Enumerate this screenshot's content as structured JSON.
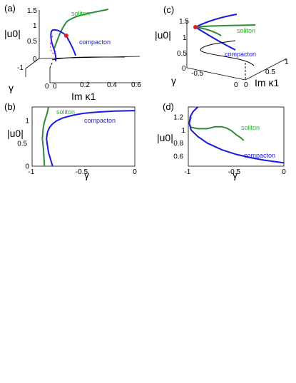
{
  "colors": {
    "soliton": "#2e8b3a",
    "compacton": "#1a1adc",
    "black": "#000000",
    "magenta": "#c020c0",
    "marker": "#e02020",
    "soliton_label": "#22bb22"
  },
  "panels": {
    "a": "(a)",
    "b": "(b)",
    "c": "(c)",
    "d": "(d)"
  },
  "chart_data": [
    {
      "panel": "a",
      "type": "line",
      "projection": "3d",
      "xlabel": "Im κ1",
      "ylabel": "γ",
      "zlabel": "|u0|",
      "x_ticks": [
        "0",
        "0.2",
        "0.4",
        "0.6"
      ],
      "y_ticks": [
        "0",
        "-1"
      ],
      "z_ticks": [
        "0",
        "0.5",
        "1",
        "1.5"
      ],
      "series": [
        {
          "name": "soliton",
          "points": [
            [
              0.0,
              -0.5,
              0.85
            ],
            [
              0.05,
              -0.5,
              1.0
            ],
            [
              0.15,
              -0.5,
              1.25
            ],
            [
              0.3,
              -0.5,
              1.45
            ],
            [
              0.45,
              -0.5,
              1.55
            ]
          ]
        },
        {
          "name": "compacton",
          "points": [
            [
              0.05,
              -0.5,
              0.9
            ],
            [
              0.12,
              -0.5,
              0.55
            ],
            [
              0.18,
              -0.5,
              0.3
            ]
          ]
        }
      ],
      "marker": {
        "x": 0.05,
        "y": -0.5,
        "z": 0.9
      }
    },
    {
      "panel": "b",
      "type": "line",
      "xlabel": "γ",
      "ylabel": "|u0|",
      "xlim": [
        -1,
        0
      ],
      "ylim": [
        0,
        1.3
      ],
      "x_ticks": [
        "-1",
        "-0.5",
        "0"
      ],
      "y_ticks": [
        "0",
        "0.5",
        "1"
      ],
      "series": [
        {
          "name": "soliton",
          "x": [
            -0.88,
            -0.885,
            -0.89,
            -0.9,
            -0.895,
            -0.89,
            -0.882,
            -0.87,
            -0.855,
            -0.84
          ],
          "y": [
            0.0,
            0.2,
            0.4,
            0.6,
            0.75,
            0.85,
            0.95,
            1.05,
            1.15,
            1.3
          ]
        },
        {
          "name": "compacton",
          "x": [
            -0.8,
            -0.82,
            -0.84,
            -0.85,
            -0.86,
            -0.85,
            -0.83,
            -0.8,
            -0.76,
            -0.7,
            -0.6,
            -0.5,
            -0.35,
            -0.2,
            0.0
          ],
          "y": [
            0.0,
            0.15,
            0.3,
            0.45,
            0.6,
            0.75,
            0.85,
            0.93,
            1.0,
            1.06,
            1.12,
            1.16,
            1.19,
            1.21,
            1.22
          ]
        }
      ],
      "annotations": [
        "soliton",
        "compacton"
      ]
    },
    {
      "panel": "c",
      "type": "line",
      "projection": "3d",
      "xlabel": "Im κ1",
      "ylabel": "γ",
      "zlabel": "|u0|",
      "x_ticks": [
        "0",
        "0.5",
        "1"
      ],
      "y_ticks": [
        "-0.5",
        "0"
      ],
      "z_ticks": [
        "0",
        "0.5",
        "1",
        "1.5"
      ],
      "series": [
        {
          "name": "soliton",
          "points": [
            [
              0.0,
              -0.9,
              1.1
            ],
            [
              0.5,
              -0.6,
              1.25
            ],
            [
              1.0,
              -0.4,
              1.35
            ]
          ]
        },
        {
          "name": "compacton",
          "points": [
            [
              0.0,
              -0.9,
              1.1
            ],
            [
              0.3,
              -0.5,
              0.55
            ],
            [
              0.5,
              -0.1,
              0.3
            ]
          ]
        }
      ],
      "marker": {
        "x": 0.0,
        "y": -0.9,
        "z": 1.1
      }
    },
    {
      "panel": "d",
      "type": "line",
      "xlabel": "γ",
      "ylabel": "|u0|",
      "xlim": [
        -1,
        0
      ],
      "ylim": [
        0.45,
        1.35
      ],
      "x_ticks": [
        "-1",
        "-0.5",
        "0"
      ],
      "y_ticks": [
        "0.6",
        "0.8",
        "1",
        "1.2"
      ],
      "series": [
        {
          "name": "soliton",
          "x": [
            -0.97,
            -0.99,
            -0.97,
            -0.9,
            -0.8,
            -0.72,
            -0.65,
            -0.6,
            -0.55,
            -0.5,
            -0.45,
            -0.42
          ],
          "y": [
            1.2,
            1.1,
            1.04,
            1.02,
            1.02,
            1.05,
            1.05,
            1.03,
            0.99,
            0.93,
            0.88,
            0.84
          ]
        },
        {
          "name": "compacton",
          "x": [
            -0.9,
            -0.95,
            -0.98,
            -0.99,
            -0.97,
            -0.9,
            -0.8,
            -0.65,
            -0.5,
            -0.35,
            -0.2,
            -0.1,
            0.0
          ],
          "y": [
            1.35,
            1.28,
            1.2,
            1.1,
            1.0,
            0.9,
            0.8,
            0.7,
            0.63,
            0.58,
            0.54,
            0.52,
            0.5
          ]
        }
      ],
      "annotations": [
        "soliton",
        "compacton"
      ]
    }
  ]
}
